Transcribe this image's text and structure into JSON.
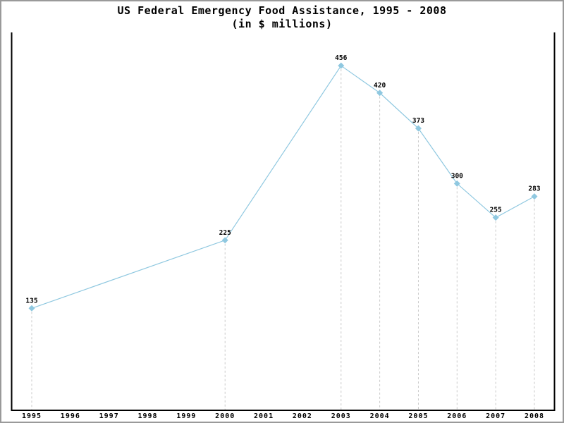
{
  "window": {
    "background_color": "#ffffff",
    "frame_border_color": "#9a9a9a"
  },
  "chart_data": {
    "type": "line",
    "title": "US Federal Emergency Food Assistance, 1995 - 2008",
    "subtitle": "(in $ millions)",
    "xlabel": "",
    "ylabel": "",
    "x_ticks": [
      "1995",
      "1996",
      "1997",
      "1998",
      "1999",
      "2000",
      "2001",
      "2002",
      "2003",
      "2004",
      "2005",
      "2006",
      "2007",
      "2008"
    ],
    "points": [
      {
        "year": 1995,
        "value": 135,
        "label": "135"
      },
      {
        "year": 2000,
        "value": 225,
        "label": "225"
      },
      {
        "year": 2003,
        "value": 456,
        "label": "456"
      },
      {
        "year": 2004,
        "value": 420,
        "label": "420"
      },
      {
        "year": 2005,
        "value": 373,
        "label": "373"
      },
      {
        "year": 2006,
        "value": 300,
        "label": "300"
      },
      {
        "year": 2007,
        "value": 255,
        "label": "255"
      },
      {
        "year": 2008,
        "value": 283,
        "label": "283"
      }
    ],
    "ylim": [
      0,
      500
    ],
    "xlim": [
      1994.5,
      2008.5
    ],
    "y_tick_labels_shown": false,
    "grid": false,
    "droplines_at_points": true,
    "legend": "none",
    "marker": "diamond",
    "line_color": "#8fc8e0",
    "marker_color": "#8fc8e0",
    "dropline_color": "#c9c9c9",
    "axis_color": "#000000",
    "data_label_color": "#000000"
  }
}
